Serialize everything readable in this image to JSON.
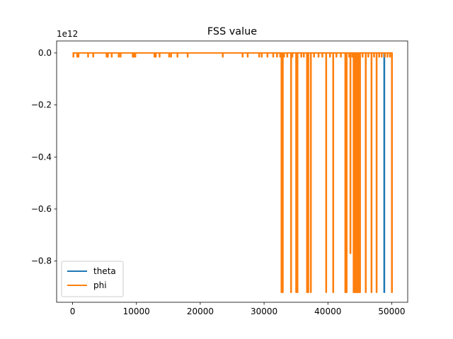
{
  "chart_data": {
    "type": "line",
    "title": "FSS value",
    "xlabel": "",
    "ylabel": "",
    "y_offset_label": "1e12",
    "xlim": [
      -2500,
      52500
    ],
    "ylim": [
      -0.9585,
      0.046
    ],
    "x_ticks": [
      0,
      10000,
      20000,
      30000,
      40000,
      50000
    ],
    "x_tick_labels": [
      "0",
      "10000",
      "20000",
      "30000",
      "40000",
      "50000"
    ],
    "y_ticks": [
      0.0,
      -0.2,
      -0.4,
      -0.6,
      -0.8
    ],
    "y_tick_labels": [
      "0.0",
      "−0.2",
      "−0.4",
      "−0.6",
      "−0.8"
    ],
    "grid": false,
    "legend_position": "lower left",
    "baseline": 0.0,
    "series": [
      {
        "name": "theta",
        "color": "#1f77b4",
        "x_range": [
          0,
          50000
        ],
        "spikes": [
          {
            "x": 48800,
            "y": -0.92
          }
        ]
      },
      {
        "name": "phi",
        "color": "#ff7f0e",
        "x_range": [
          0,
          50000
        ],
        "spikes": [
          {
            "x": 100,
            "y": -0.015
          },
          {
            "x": 700,
            "y": -0.015
          },
          {
            "x": 900,
            "y": -0.015
          },
          {
            "x": 2400,
            "y": -0.015
          },
          {
            "x": 3200,
            "y": -0.015
          },
          {
            "x": 5300,
            "y": -0.015
          },
          {
            "x": 5500,
            "y": -0.015
          },
          {
            "x": 6100,
            "y": -0.015
          },
          {
            "x": 7200,
            "y": -0.015
          },
          {
            "x": 7500,
            "y": -0.015
          },
          {
            "x": 9400,
            "y": -0.015
          },
          {
            "x": 9600,
            "y": -0.015
          },
          {
            "x": 9800,
            "y": -0.015
          },
          {
            "x": 12800,
            "y": -0.015
          },
          {
            "x": 13000,
            "y": -0.015
          },
          {
            "x": 13600,
            "y": -0.015
          },
          {
            "x": 15100,
            "y": -0.015
          },
          {
            "x": 15400,
            "y": -0.015
          },
          {
            "x": 16400,
            "y": -0.015
          },
          {
            "x": 18000,
            "y": -0.015
          },
          {
            "x": 23500,
            "y": -0.015
          },
          {
            "x": 26600,
            "y": -0.015
          },
          {
            "x": 27400,
            "y": -0.015
          },
          {
            "x": 29200,
            "y": -0.015
          },
          {
            "x": 29600,
            "y": -0.015
          },
          {
            "x": 30500,
            "y": -0.015
          },
          {
            "x": 31400,
            "y": -0.015
          },
          {
            "x": 32000,
            "y": -0.015
          },
          {
            "x": 32500,
            "y": -0.015
          },
          {
            "x": 32700,
            "y": -0.92
          },
          {
            "x": 32900,
            "y": -0.92
          },
          {
            "x": 33100,
            "y": -0.015
          },
          {
            "x": 33600,
            "y": -0.015
          },
          {
            "x": 34200,
            "y": -0.92
          },
          {
            "x": 34400,
            "y": -0.015
          },
          {
            "x": 35000,
            "y": -0.92
          },
          {
            "x": 35200,
            "y": -0.92
          },
          {
            "x": 35800,
            "y": -0.015
          },
          {
            "x": 36200,
            "y": -0.015
          },
          {
            "x": 36700,
            "y": -0.92
          },
          {
            "x": 36900,
            "y": -0.92
          },
          {
            "x": 37300,
            "y": -0.92
          },
          {
            "x": 37800,
            "y": -0.015
          },
          {
            "x": 38500,
            "y": -0.015
          },
          {
            "x": 39100,
            "y": -0.015
          },
          {
            "x": 39700,
            "y": -0.92
          },
          {
            "x": 40300,
            "y": -0.015
          },
          {
            "x": 40800,
            "y": -0.92
          },
          {
            "x": 41300,
            "y": -0.015
          },
          {
            "x": 42000,
            "y": -0.015
          },
          {
            "x": 42700,
            "y": -0.92
          },
          {
            "x": 42900,
            "y": -0.92
          },
          {
            "x": 43300,
            "y": -0.015
          },
          {
            "x": 43500,
            "y": -0.77
          },
          {
            "x": 43800,
            "y": -0.015
          },
          {
            "x": 44000,
            "y": -0.92
          },
          {
            "x": 44200,
            "y": -0.92
          },
          {
            "x": 44400,
            "y": -0.92
          },
          {
            "x": 44600,
            "y": -0.92
          },
          {
            "x": 44800,
            "y": -0.92
          },
          {
            "x": 45000,
            "y": -0.92
          },
          {
            "x": 45400,
            "y": -0.015
          },
          {
            "x": 45900,
            "y": -0.92
          },
          {
            "x": 46300,
            "y": -0.015
          },
          {
            "x": 46800,
            "y": -0.92
          },
          {
            "x": 47200,
            "y": -0.015
          },
          {
            "x": 47600,
            "y": -0.92
          },
          {
            "x": 48000,
            "y": -0.015
          },
          {
            "x": 48400,
            "y": -0.015
          },
          {
            "x": 48900,
            "y": -0.015
          },
          {
            "x": 49300,
            "y": -0.015
          },
          {
            "x": 49700,
            "y": -0.015
          },
          {
            "x": 50000,
            "y": -0.92
          }
        ]
      }
    ]
  }
}
